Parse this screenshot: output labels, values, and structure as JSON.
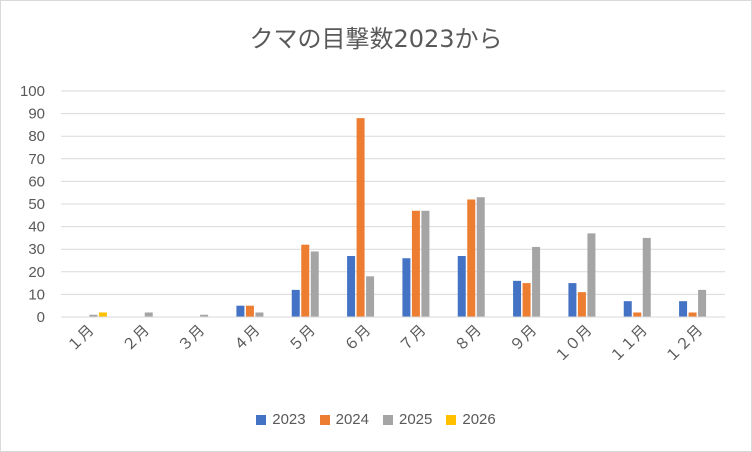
{
  "chart_data": {
    "type": "bar",
    "title": "クマの目撃数2023から",
    "categories": [
      "1月",
      "2月",
      "3月",
      "4月",
      "5月",
      "6月",
      "7月",
      "8月",
      "9月",
      "10月",
      "11月",
      "12月"
    ],
    "category_labels": [
      "１月",
      "２月",
      "３月",
      "４月",
      "５月",
      "６月",
      "７月",
      "８月",
      "９月",
      "１０月",
      "１１月",
      "１２月"
    ],
    "series": [
      {
        "name": "2023",
        "color": "#4472c4",
        "values": [
          0,
          0,
          0,
          5,
          12,
          27,
          26,
          27,
          16,
          15,
          7,
          7
        ]
      },
      {
        "name": "2024",
        "color": "#ed7d31",
        "values": [
          0,
          0,
          0,
          5,
          32,
          88,
          47,
          52,
          15,
          11,
          2,
          2
        ]
      },
      {
        "name": "2025",
        "color": "#a5a5a5",
        "values": [
          1,
          2,
          1,
          2,
          29,
          18,
          47,
          53,
          31,
          37,
          35,
          12
        ]
      },
      {
        "name": "2026",
        "color": "#ffc000",
        "values": [
          2,
          0,
          0,
          0,
          0,
          0,
          0,
          0,
          0,
          0,
          0,
          0
        ]
      }
    ],
    "y_ticks": [
      0,
      10,
      20,
      30,
      40,
      50,
      60,
      70,
      80,
      90,
      100
    ],
    "ylim": [
      0,
      100
    ],
    "grid": true,
    "legend": "bottom"
  }
}
